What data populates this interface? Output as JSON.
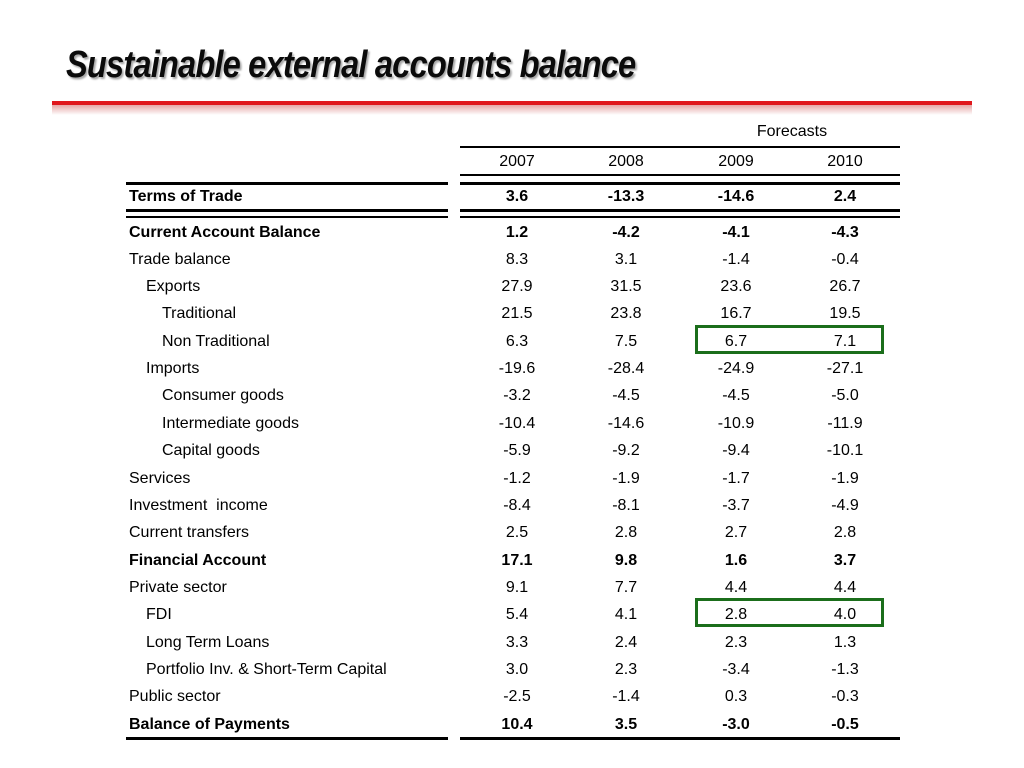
{
  "slide": {
    "title": "Sustainable external accounts balance",
    "accent_color": "#e0171d",
    "highlight_color": "#1b6e1b"
  },
  "table": {
    "group_header": "Forecasts",
    "years": [
      "2007",
      "2008",
      "2009",
      "2010"
    ],
    "terms_of_trade": {
      "label": "Terms of Trade",
      "values": [
        "3.6",
        "-13.3",
        "-14.6",
        "2.4"
      ]
    },
    "rows": [
      {
        "label": "Current Account Balance",
        "indent": 0,
        "bold": true,
        "values": [
          "1.2",
          "-4.2",
          "-4.1",
          "-4.3"
        ]
      },
      {
        "label": "Trade balance",
        "indent": 0,
        "bold": false,
        "values": [
          "8.3",
          "3.1",
          "-1.4",
          "-0.4"
        ]
      },
      {
        "label": "Exports",
        "indent": 1,
        "bold": false,
        "values": [
          "27.9",
          "31.5",
          "23.6",
          "26.7"
        ]
      },
      {
        "label": "Traditional",
        "indent": 2,
        "bold": false,
        "values": [
          "21.5",
          "23.8",
          "16.7",
          "19.5"
        ]
      },
      {
        "label": "Non Traditional",
        "indent": 2,
        "bold": false,
        "values": [
          "6.3",
          "7.5",
          "6.7",
          "7.1"
        ],
        "highlighted": true
      },
      {
        "label": "Imports",
        "indent": 1,
        "bold": false,
        "values": [
          "-19.6",
          "-28.4",
          "-24.9",
          "-27.1"
        ]
      },
      {
        "label": "Consumer goods",
        "indent": 2,
        "bold": false,
        "values": [
          "-3.2",
          "-4.5",
          "-4.5",
          "-5.0"
        ]
      },
      {
        "label": "Intermediate goods",
        "indent": 2,
        "bold": false,
        "values": [
          "-10.4",
          "-14.6",
          "-10.9",
          "-11.9"
        ]
      },
      {
        "label": "Capital goods",
        "indent": 2,
        "bold": false,
        "values": [
          "-5.9",
          "-9.2",
          "-9.4",
          "-10.1"
        ]
      },
      {
        "label": "Services",
        "indent": 0,
        "bold": false,
        "values": [
          "-1.2",
          "-1.9",
          "-1.7",
          "-1.9"
        ]
      },
      {
        "label": "Investment  income",
        "indent": 0,
        "bold": false,
        "values": [
          "-8.4",
          "-8.1",
          "-3.7",
          "-4.9"
        ]
      },
      {
        "label": "Current transfers",
        "indent": 0,
        "bold": false,
        "values": [
          "2.5",
          "2.8",
          "2.7",
          "2.8"
        ]
      },
      {
        "label": "Financial Account",
        "indent": 0,
        "bold": true,
        "values": [
          "17.1",
          "9.8",
          "1.6",
          "3.7"
        ]
      },
      {
        "label": "Private sector",
        "indent": 0,
        "bold": false,
        "values": [
          "9.1",
          "7.7",
          "4.4",
          "4.4"
        ]
      },
      {
        "label": "FDI",
        "indent": 1,
        "bold": false,
        "values": [
          "5.4",
          "4.1",
          "2.8",
          "4.0"
        ],
        "highlighted": true
      },
      {
        "label": "Long Term Loans",
        "indent": 1,
        "bold": false,
        "values": [
          "3.3",
          "2.4",
          "2.3",
          "1.3"
        ]
      },
      {
        "label": "Portfolio Inv. & Short-Term Capital",
        "indent": 1,
        "bold": false,
        "values": [
          "3.0",
          "2.3",
          "-3.4",
          "-1.3"
        ]
      },
      {
        "label": "Public sector",
        "indent": 0,
        "bold": false,
        "values": [
          "-2.5",
          "-1.4",
          "0.3",
          "-0.3"
        ]
      },
      {
        "label": "Balance of Payments",
        "indent": 0,
        "bold": true,
        "values": [
          "10.4",
          "3.5",
          "-3.0",
          "-0.5"
        ]
      }
    ]
  }
}
